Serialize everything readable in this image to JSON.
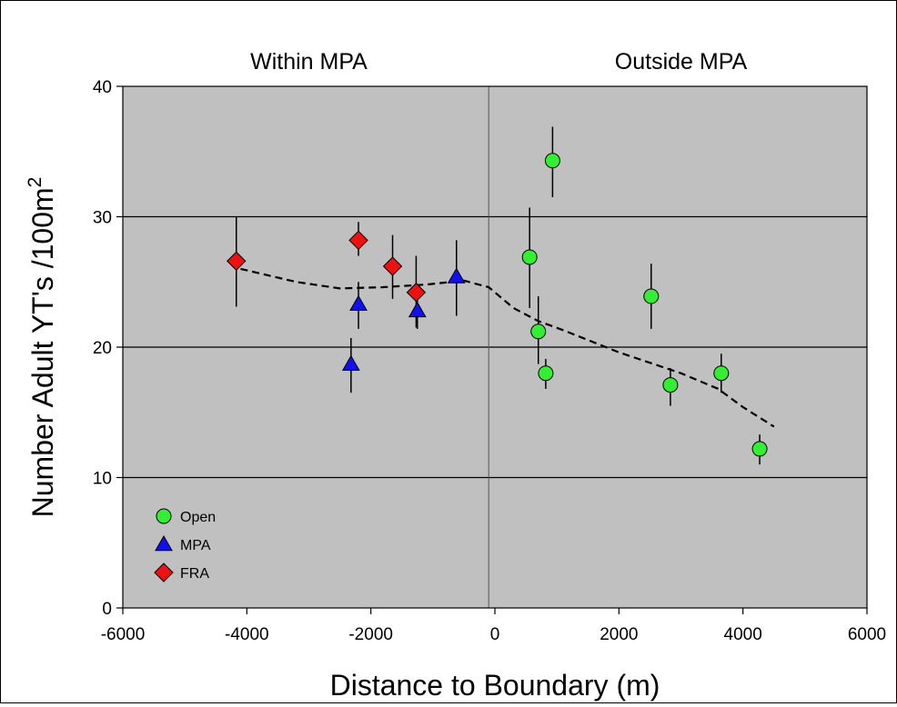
{
  "chart_data": {
    "type": "scatter",
    "xlabel": "Distance to Boundary (m)",
    "ylabel": "Number Adult YT's /100m",
    "ylabel_superscript": "2",
    "xlim": [
      -6000,
      6000
    ],
    "ylim": [
      0,
      40
    ],
    "x_ticks": [
      -6000,
      -4000,
      -2000,
      0,
      2000,
      4000,
      6000
    ],
    "y_ticks": [
      0,
      10,
      20,
      30,
      40
    ],
    "grid": "horizontal",
    "background": "#c0c0c0",
    "region_labels": [
      {
        "text": "Within MPA",
        "x": -3000
      },
      {
        "text": "Outside MPA",
        "x": 3000
      }
    ],
    "boundary_line_x": -100,
    "legend_position": "bottom-left",
    "series": [
      {
        "name": "Open",
        "marker": "circle",
        "color": "#33ee33",
        "points": [
          {
            "x": 560,
            "y": 26.9,
            "err_low": 23.0,
            "err_high": 30.7
          },
          {
            "x": 700,
            "y": 21.2,
            "err_low": 18.7,
            "err_high": 23.9
          },
          {
            "x": 820,
            "y": 18.0,
            "err_low": 16.8,
            "err_high": 19.1
          },
          {
            "x": 930,
            "y": 34.3,
            "err_low": 31.5,
            "err_high": 36.9
          },
          {
            "x": 2520,
            "y": 23.9,
            "err_low": 21.4,
            "err_high": 26.4
          },
          {
            "x": 2830,
            "y": 17.1,
            "err_low": 15.5,
            "err_high": 18.4
          },
          {
            "x": 3650,
            "y": 18.0,
            "err_low": 16.5,
            "err_high": 19.5
          },
          {
            "x": 4270,
            "y": 12.2,
            "err_low": 11.0,
            "err_high": 13.3
          }
        ]
      },
      {
        "name": "MPA",
        "marker": "triangle",
        "color": "#1111ee",
        "points": [
          {
            "x": -2320,
            "y": 18.7,
            "err_low": 16.5,
            "err_high": 20.7
          },
          {
            "x": -2200,
            "y": 23.3,
            "err_low": 21.4,
            "err_high": 25.0
          },
          {
            "x": -1250,
            "y": 22.8,
            "err_low": 21.4,
            "err_high": 24.1
          },
          {
            "x": -620,
            "y": 25.4,
            "err_low": 22.4,
            "err_high": 28.2
          }
        ]
      },
      {
        "name": "FRA",
        "marker": "diamond",
        "color": "#ee1111",
        "points": [
          {
            "x": -4170,
            "y": 26.6,
            "err_low": 23.1,
            "err_high": 30.0
          },
          {
            "x": -2200,
            "y": 28.2,
            "err_low": 27.0,
            "err_high": 29.6
          },
          {
            "x": -1650,
            "y": 26.2,
            "err_low": 23.7,
            "err_high": 28.6
          },
          {
            "x": -1270,
            "y": 24.2,
            "err_low": 21.5,
            "err_high": 27.0
          }
        ]
      }
    ],
    "trend_line": {
      "style": "dashed",
      "points": [
        [
          -4100,
          26.0
        ],
        [
          -3200,
          25.0
        ],
        [
          -2500,
          24.5
        ],
        [
          -1800,
          24.6
        ],
        [
          -1100,
          24.8
        ],
        [
          -500,
          25.1
        ],
        [
          -100,
          24.6
        ],
        [
          300,
          23.0
        ],
        [
          700,
          22.0
        ],
        [
          1100,
          21.3
        ],
        [
          2000,
          19.6
        ],
        [
          3000,
          18.0
        ],
        [
          3600,
          16.8
        ],
        [
          4000,
          15.4
        ],
        [
          4500,
          13.9
        ]
      ]
    }
  }
}
